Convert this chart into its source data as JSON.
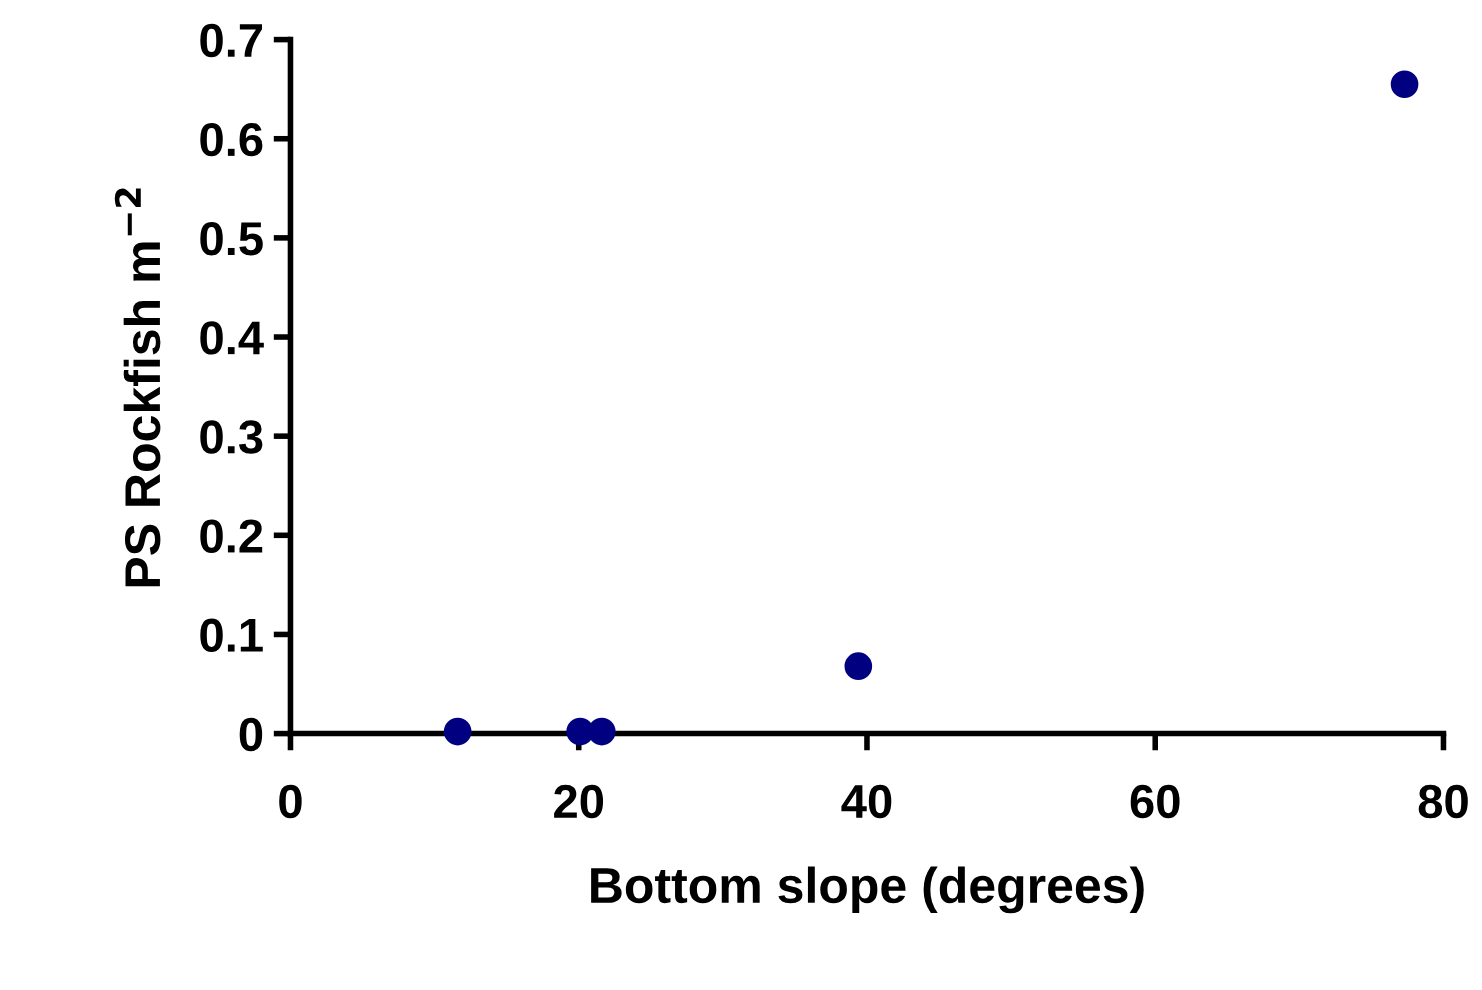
{
  "chart_data": {
    "type": "scatter",
    "xlabel": "Bottom slope (degrees)",
    "ylabel": "PS Rockfish m$^{−2}$",
    "x": [
      11.6,
      20.1,
      21.6,
      39.4,
      77.3
    ],
    "values": [
      0.002,
      0.002,
      0.002,
      0.068,
      0.655
    ],
    "color": "#000080",
    "marker": "circle",
    "xlim": [
      0,
      80
    ],
    "xticks": [
      0,
      20,
      40,
      60,
      80
    ],
    "ylim": [
      0,
      0.7
    ],
    "yticks": [
      0,
      0.1,
      0.2,
      0.3,
      0.4,
      0.5,
      0.6,
      0.7
    ],
    "grid": false,
    "legend": false
  }
}
